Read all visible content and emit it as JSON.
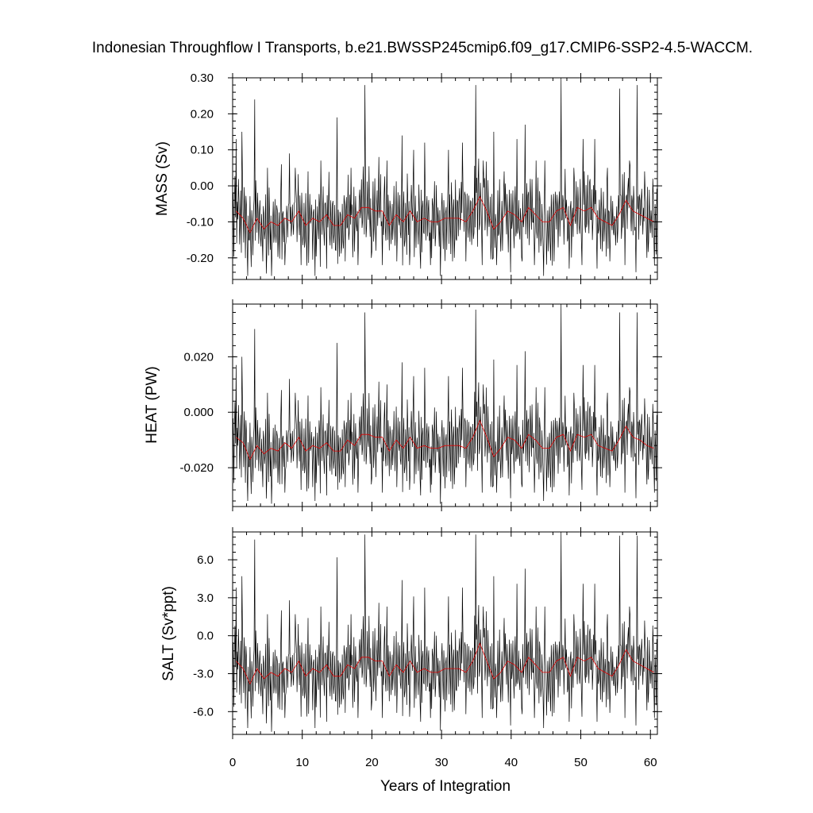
{
  "chart_data": {
    "type": "line",
    "title": "Indonesian Throughflow I Transports, b.e21.BWSSP245cmip6.f09_g17.CMIP6-SSP2-4.5-WACCM.",
    "xlabel": "Years of Integration",
    "xlim": [
      0,
      61
    ],
    "x_ticks": [
      0,
      10,
      20,
      30,
      40,
      50,
      60
    ],
    "x_tick_labels": [
      "0",
      "10",
      "20",
      "30",
      "40",
      "50",
      "60"
    ],
    "grid": false,
    "series_colors": {
      "monthly": "#000000",
      "annual_mean": "#e00000"
    },
    "panels": [
      {
        "ylabel": "MASS (Sv)",
        "ylim": [
          -0.26,
          0.3
        ],
        "y_ticks": [
          0.3,
          0.2,
          0.1,
          0.0,
          -0.1,
          -0.2
        ],
        "y_tick_labels": [
          "0.30",
          "0.20",
          "0.10",
          "0.00",
          "-0.10",
          "-0.20"
        ],
        "annual_mean": [
          -0.07,
          -0.09,
          -0.13,
          -0.09,
          -0.12,
          -0.1,
          -0.11,
          -0.09,
          -0.1,
          -0.07,
          -0.11,
          -0.09,
          -0.1,
          -0.08,
          -0.11,
          -0.11,
          -0.08,
          -0.09,
          -0.06,
          -0.06,
          -0.07,
          -0.07,
          -0.11,
          -0.08,
          -0.1,
          -0.07,
          -0.1,
          -0.09,
          -0.1,
          -0.1,
          -0.09,
          -0.09,
          -0.09,
          -0.1,
          -0.07,
          -0.03,
          -0.07,
          -0.12,
          -0.1,
          -0.07,
          -0.08,
          -0.1,
          -0.06,
          -0.08,
          -0.1,
          -0.1,
          -0.07,
          -0.06,
          -0.11,
          -0.06,
          -0.07,
          -0.06,
          -0.09,
          -0.1,
          -0.11,
          -0.08,
          -0.04,
          -0.07,
          -0.08,
          -0.09,
          -0.1
        ],
        "peaks": [
          [
            0.5,
            0.13
          ],
          [
            1.3,
            0.15
          ],
          [
            3.2,
            0.24
          ],
          [
            5.0,
            0.05
          ],
          [
            7.0,
            0.06
          ],
          [
            8.2,
            0.09
          ],
          [
            9.0,
            0.05
          ],
          [
            10.8,
            0.04
          ],
          [
            12.7,
            0.07
          ],
          [
            15.0,
            0.19
          ],
          [
            17.0,
            0.05
          ],
          [
            19.0,
            0.28
          ],
          [
            21.0,
            0.08
          ],
          [
            22.2,
            0.07
          ],
          [
            24.3,
            0.14
          ],
          [
            26.0,
            0.1
          ],
          [
            27.6,
            0.12
          ],
          [
            29.8,
            0.09
          ],
          [
            31.0,
            0.1
          ],
          [
            33.0,
            0.12
          ],
          [
            34.9,
            0.28
          ],
          [
            36.0,
            0.07
          ],
          [
            37.5,
            0.15
          ],
          [
            39.0,
            0.04
          ],
          [
            40.8,
            0.13
          ],
          [
            42.0,
            0.17
          ],
          [
            43.6,
            0.07
          ],
          [
            44.8,
            0.07
          ],
          [
            47.2,
            0.3
          ],
          [
            49.0,
            0.05
          ],
          [
            50.3,
            0.13
          ],
          [
            52.0,
            0.13
          ],
          [
            53.8,
            0.05
          ],
          [
            55.6,
            0.27
          ],
          [
            57.0,
            0.07
          ],
          [
            58.1,
            0.28
          ],
          [
            59.2,
            0.04
          ],
          [
            60.3,
            0.02
          ]
        ],
        "troughs": [
          [
            0.6,
            -0.16
          ],
          [
            2.2,
            -0.25
          ],
          [
            4.3,
            -0.21
          ],
          [
            5.6,
            -0.25
          ],
          [
            7.5,
            -0.22
          ],
          [
            9.8,
            -0.22
          ],
          [
            11.8,
            -0.25
          ],
          [
            13.5,
            -0.23
          ],
          [
            16.2,
            -0.21
          ],
          [
            18.0,
            -0.22
          ],
          [
            19.9,
            -0.2
          ],
          [
            21.5,
            -0.22
          ],
          [
            23.6,
            -0.21
          ],
          [
            25.4,
            -0.22
          ],
          [
            27.0,
            -0.23
          ],
          [
            28.4,
            -0.22
          ],
          [
            29.8,
            -0.25
          ],
          [
            31.8,
            -0.2
          ],
          [
            33.5,
            -0.21
          ],
          [
            35.8,
            -0.22
          ],
          [
            37.9,
            -0.22
          ],
          [
            39.9,
            -0.24
          ],
          [
            41.6,
            -0.21
          ],
          [
            43.3,
            -0.22
          ],
          [
            44.7,
            -0.25
          ],
          [
            46.2,
            -0.21
          ],
          [
            48.3,
            -0.23
          ],
          [
            50.2,
            -0.22
          ],
          [
            52.3,
            -0.23
          ],
          [
            54.2,
            -0.21
          ],
          [
            56.3,
            -0.22
          ],
          [
            57.9,
            -0.24
          ],
          [
            59.5,
            -0.2
          ],
          [
            60.6,
            -0.22
          ]
        ]
      },
      {
        "ylabel": "HEAT (PW)",
        "ylim": [
          -0.034,
          0.039
        ],
        "y_ticks": [
          0.02,
          0.0,
          -0.02
        ],
        "y_tick_labels": [
          "0.020",
          "0.000",
          "-0.020"
        ],
        "annual_mean": [
          -0.009,
          -0.011,
          -0.017,
          -0.012,
          -0.015,
          -0.013,
          -0.014,
          -0.011,
          -0.013,
          -0.009,
          -0.014,
          -0.012,
          -0.013,
          -0.011,
          -0.014,
          -0.014,
          -0.01,
          -0.012,
          -0.008,
          -0.008,
          -0.009,
          -0.009,
          -0.014,
          -0.01,
          -0.013,
          -0.009,
          -0.013,
          -0.012,
          -0.013,
          -0.013,
          -0.012,
          -0.012,
          -0.012,
          -0.013,
          -0.009,
          -0.003,
          -0.009,
          -0.016,
          -0.013,
          -0.009,
          -0.01,
          -0.013,
          -0.008,
          -0.01,
          -0.013,
          -0.013,
          -0.009,
          -0.008,
          -0.014,
          -0.008,
          -0.009,
          -0.008,
          -0.012,
          -0.013,
          -0.014,
          -0.01,
          -0.005,
          -0.009,
          -0.01,
          -0.012,
          -0.013
        ],
        "peaks": [
          [
            0.5,
            0.017
          ],
          [
            1.3,
            0.02
          ],
          [
            3.2,
            0.03
          ],
          [
            5.0,
            0.007
          ],
          [
            7.0,
            0.008
          ],
          [
            8.2,
            0.012
          ],
          [
            9.0,
            0.007
          ],
          [
            10.8,
            0.006
          ],
          [
            12.7,
            0.009
          ],
          [
            15.0,
            0.025
          ],
          [
            17.0,
            0.007
          ],
          [
            19.0,
            0.036
          ],
          [
            21.0,
            0.011
          ],
          [
            22.2,
            0.01
          ],
          [
            24.3,
            0.018
          ],
          [
            26.0,
            0.013
          ],
          [
            27.6,
            0.016
          ],
          [
            29.8,
            0.012
          ],
          [
            31.0,
            0.013
          ],
          [
            33.0,
            0.016
          ],
          [
            34.9,
            0.037
          ],
          [
            36.0,
            0.01
          ],
          [
            37.5,
            0.019
          ],
          [
            39.0,
            0.006
          ],
          [
            40.8,
            0.017
          ],
          [
            42.0,
            0.022
          ],
          [
            43.6,
            0.009
          ],
          [
            44.8,
            0.009
          ],
          [
            47.2,
            0.039
          ],
          [
            49.0,
            0.007
          ],
          [
            50.3,
            0.017
          ],
          [
            52.0,
            0.017
          ],
          [
            53.8,
            0.007
          ],
          [
            55.6,
            0.036
          ],
          [
            57.0,
            0.009
          ],
          [
            58.1,
            0.036
          ],
          [
            59.2,
            0.005
          ],
          [
            60.3,
            0.003
          ]
        ],
        "troughs": [
          [
            0.6,
            -0.02
          ],
          [
            2.2,
            -0.032
          ],
          [
            4.3,
            -0.027
          ],
          [
            5.6,
            -0.033
          ],
          [
            7.5,
            -0.029
          ],
          [
            9.8,
            -0.028
          ],
          [
            11.8,
            -0.032
          ],
          [
            13.5,
            -0.03
          ],
          [
            16.2,
            -0.027
          ],
          [
            18.0,
            -0.029
          ],
          [
            19.9,
            -0.026
          ],
          [
            21.5,
            -0.029
          ],
          [
            23.6,
            -0.027
          ],
          [
            25.4,
            -0.028
          ],
          [
            27.0,
            -0.03
          ],
          [
            28.4,
            -0.029
          ],
          [
            29.8,
            -0.033
          ],
          [
            31.8,
            -0.026
          ],
          [
            33.5,
            -0.027
          ],
          [
            35.8,
            -0.029
          ],
          [
            37.9,
            -0.029
          ],
          [
            39.9,
            -0.031
          ],
          [
            41.6,
            -0.027
          ],
          [
            43.3,
            -0.029
          ],
          [
            44.7,
            -0.032
          ],
          [
            46.2,
            -0.027
          ],
          [
            48.3,
            -0.03
          ],
          [
            50.2,
            -0.028
          ],
          [
            52.3,
            -0.03
          ],
          [
            54.2,
            -0.027
          ],
          [
            56.3,
            -0.029
          ],
          [
            57.9,
            -0.031
          ],
          [
            59.5,
            -0.026
          ],
          [
            60.6,
            -0.029
          ]
        ]
      },
      {
        "ylabel": "SALT (Sv*ppt)",
        "ylim": [
          -7.8,
          8.2
        ],
        "y_ticks": [
          6.0,
          3.0,
          0.0,
          -3.0,
          -6.0
        ],
        "y_tick_labels": [
          "6.0",
          "3.0",
          "0.0",
          "-3.0",
          "-6.0"
        ],
        "annual_mean": [
          -2.0,
          -2.6,
          -3.8,
          -2.6,
          -3.4,
          -2.9,
          -3.2,
          -2.6,
          -2.9,
          -2.0,
          -3.2,
          -2.6,
          -2.9,
          -2.3,
          -3.2,
          -3.2,
          -2.3,
          -2.6,
          -1.7,
          -1.7,
          -2.0,
          -2.0,
          -3.2,
          -2.3,
          -2.9,
          -2.0,
          -2.9,
          -2.6,
          -2.9,
          -2.9,
          -2.6,
          -2.6,
          -2.6,
          -2.9,
          -2.0,
          -0.6,
          -2.0,
          -3.4,
          -2.9,
          -2.0,
          -2.3,
          -2.9,
          -1.7,
          -2.3,
          -2.9,
          -2.9,
          -2.0,
          -1.7,
          -3.2,
          -1.7,
          -2.0,
          -1.7,
          -2.6,
          -2.9,
          -3.2,
          -2.3,
          -1.1,
          -2.0,
          -2.3,
          -2.6,
          -2.9
        ],
        "peaks": [
          [
            0.5,
            3.8
          ],
          [
            1.3,
            4.7
          ],
          [
            3.2,
            7.6
          ],
          [
            5.0,
            1.7
          ],
          [
            7.0,
            2.0
          ],
          [
            8.2,
            2.8
          ],
          [
            9.0,
            1.7
          ],
          [
            10.8,
            1.4
          ],
          [
            12.7,
            2.3
          ],
          [
            15.0,
            6.2
          ],
          [
            17.0,
            1.7
          ],
          [
            19.0,
            8.0
          ],
          [
            21.0,
            2.6
          ],
          [
            22.2,
            2.3
          ],
          [
            24.3,
            4.4
          ],
          [
            26.0,
            3.1
          ],
          [
            27.6,
            3.8
          ],
          [
            29.8,
            2.8
          ],
          [
            31.0,
            3.1
          ],
          [
            33.0,
            3.8
          ],
          [
            34.9,
            8.0
          ],
          [
            36.0,
            2.3
          ],
          [
            37.5,
            4.7
          ],
          [
            39.0,
            1.4
          ],
          [
            40.8,
            4.1
          ],
          [
            42.0,
            5.3
          ],
          [
            43.6,
            2.3
          ],
          [
            44.8,
            2.3
          ],
          [
            47.2,
            8.2
          ],
          [
            49.0,
            1.7
          ],
          [
            50.3,
            4.1
          ],
          [
            52.0,
            4.1
          ],
          [
            53.8,
            1.7
          ],
          [
            55.6,
            7.9
          ],
          [
            57.0,
            2.3
          ],
          [
            58.1,
            7.9
          ],
          [
            59.2,
            1.2
          ],
          [
            60.3,
            0.8
          ]
        ],
        "troughs": [
          [
            0.6,
            -4.5
          ],
          [
            2.2,
            -7.3
          ],
          [
            4.3,
            -6.2
          ],
          [
            5.6,
            -7.6
          ],
          [
            7.5,
            -6.5
          ],
          [
            9.8,
            -6.4
          ],
          [
            11.8,
            -7.3
          ],
          [
            13.5,
            -6.8
          ],
          [
            16.2,
            -6.1
          ],
          [
            18.0,
            -6.5
          ],
          [
            19.9,
            -5.9
          ],
          [
            21.5,
            -6.5
          ],
          [
            23.6,
            -6.1
          ],
          [
            25.4,
            -6.4
          ],
          [
            27.0,
            -6.8
          ],
          [
            28.4,
            -6.5
          ],
          [
            29.8,
            -7.5
          ],
          [
            31.8,
            -5.9
          ],
          [
            33.5,
            -6.2
          ],
          [
            35.8,
            -6.5
          ],
          [
            37.9,
            -6.5
          ],
          [
            39.9,
            -7.1
          ],
          [
            41.6,
            -6.2
          ],
          [
            43.3,
            -6.5
          ],
          [
            44.7,
            -7.3
          ],
          [
            46.2,
            -6.1
          ],
          [
            48.3,
            -6.8
          ],
          [
            50.2,
            -6.4
          ],
          [
            52.3,
            -6.8
          ],
          [
            54.2,
            -6.1
          ],
          [
            56.3,
            -6.5
          ],
          [
            57.9,
            -7.1
          ],
          [
            59.5,
            -5.9
          ],
          [
            60.6,
            -6.5
          ]
        ]
      }
    ]
  }
}
